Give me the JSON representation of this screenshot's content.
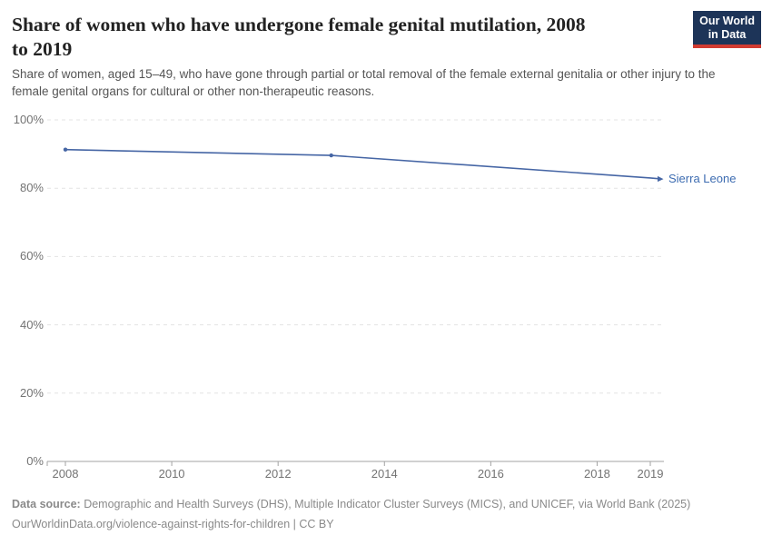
{
  "header": {
    "title_line1": "Share of women who have undergone female genital mutilation, 2008",
    "title_line2": "to 2019",
    "logo_line1": "Our World",
    "logo_line2": "in Data"
  },
  "subtitle": "Share of women, aged 15–49, who have gone through partial or total removal of the female external genitalia or other injury to the female genital organs for cultural or other non-therapeutic reasons.",
  "chart_data": {
    "type": "line",
    "title": "Share of women who have undergone female genital mutilation, 2008 to 2019",
    "xlabel": "",
    "ylabel": "",
    "xlim": [
      2008,
      2019
    ],
    "ylim": [
      0,
      100
    ],
    "grid": "horizontal-dashed",
    "legend_position": "end-of-line-label",
    "x_ticks": [
      2008,
      2010,
      2012,
      2014,
      2016,
      2018,
      2019
    ],
    "y_ticks": [
      0,
      20,
      40,
      60,
      80,
      100
    ],
    "y_tick_suffix": "%",
    "series": [
      {
        "name": "Sierra Leone",
        "points": [
          [
            2008,
            91.3
          ],
          [
            2013,
            89.6
          ],
          [
            2019,
            83.0
          ]
        ]
      }
    ]
  },
  "footer": {
    "source_label": "Data source:",
    "source_text": " Demographic and Health Surveys (DHS), Multiple Indicator Cluster Surveys (MICS), and UNICEF, via World Bank (2025)",
    "license_line": "OurWorldinData.org/violence-against-rights-for-children | CC BY"
  },
  "colors": {
    "line": "#4666a5",
    "series_label": "#3d6cb1",
    "grid": "#e3e3e3",
    "axis": "#a3a3a3",
    "tick_text": "#737373",
    "logo_bg": "#1d3458",
    "logo_red": "#d13b31"
  }
}
